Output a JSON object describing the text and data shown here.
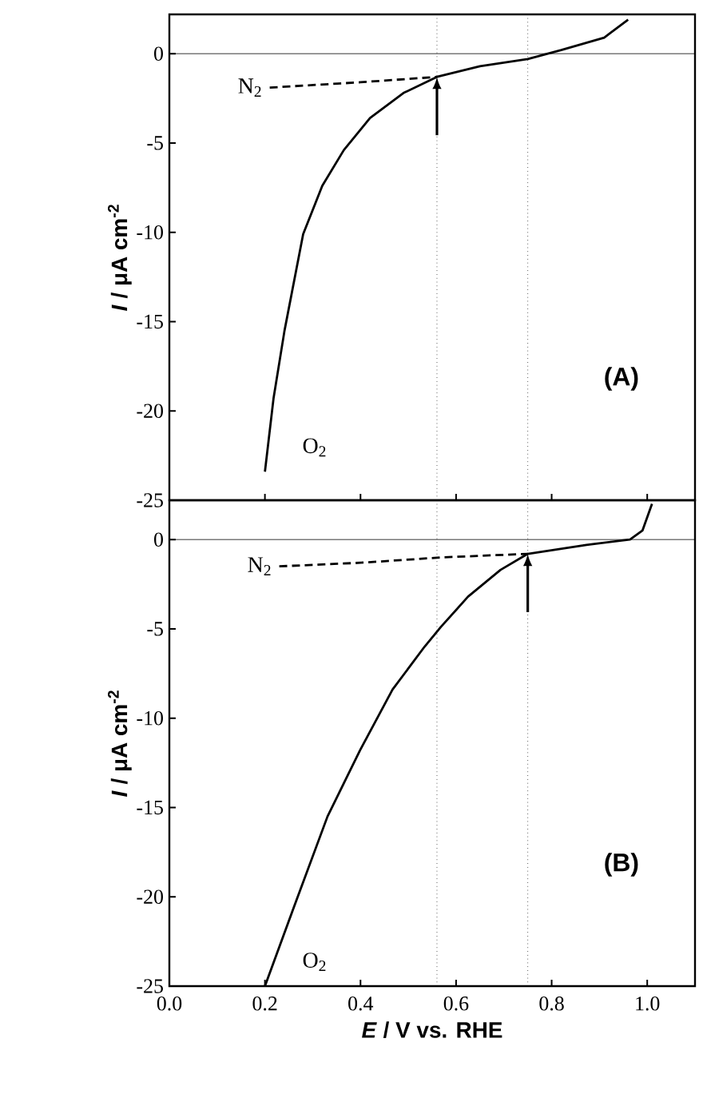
{
  "chart_data": [
    {
      "type": "line",
      "xlim": [
        0,
        1.1
      ],
      "ylim": [
        -25,
        2.2
      ],
      "xticks": [
        {
          "value": 0,
          "label": null
        },
        {
          "value": 0.2,
          "label": null
        },
        {
          "value": 0.4,
          "label": null
        },
        {
          "value": 0.6,
          "label": null
        },
        {
          "value": 0.8,
          "label": null
        },
        {
          "value": 1.0,
          "label": null
        }
      ],
      "yticks": [
        0,
        -5,
        -10,
        -15,
        -20,
        -25
      ],
      "tick_labels": "y",
      "ylabel": "*I* / μA cm$^{-2}$",
      "series": [
        {
          "name": "O$_{2}$",
          "color": "#000000",
          "line_style": "solid",
          "x": [
            0.2,
            0.218,
            0.241,
            0.28,
            0.32,
            0.365,
            0.42,
            0.49,
            0.56,
            0.65,
            0.75,
            0.82,
            0.91,
            0.96
          ],
          "values": [
            -23.4,
            -19.3,
            -15.5,
            -10.1,
            -7.4,
            -5.4,
            -3.6,
            -2.2,
            -1.3,
            -0.7,
            -0.3,
            0.2,
            0.9,
            1.9
          ]
        },
        {
          "name": "N$_{2}$",
          "color": "#000000",
          "line_style": "dashed",
          "x": [
            0.21,
            0.4,
            0.56
          ],
          "values": [
            -1.9,
            -1.6,
            -1.3
          ]
        }
      ],
      "ref_lines": [
        {
          "axis": "y",
          "value": 0,
          "line_style": "solid"
        },
        {
          "axis": "x",
          "value": 0.56,
          "line_style": "dotted"
        },
        {
          "axis": "x",
          "value": 0.75,
          "line_style": "dotted"
        }
      ],
      "annotations": [
        "(A)"
      ]
    },
    {
      "type": "line",
      "xlim": [
        0,
        1.1
      ],
      "ylim": [
        -25,
        2.2
      ],
      "xticks": [
        {
          "value": 0,
          "label": "0.0"
        },
        {
          "value": 0.2,
          "label": "0.2"
        },
        {
          "value": 0.4,
          "label": "0.4"
        },
        {
          "value": 0.6,
          "label": "0.6"
        },
        {
          "value": 0.8,
          "label": "0.8"
        },
        {
          "value": 1.0,
          "label": "1.0"
        }
      ],
      "yticks": [
        0,
        -5,
        -10,
        -15,
        -20,
        -25
      ],
      "xlabel": "*E* / V vs. RHE",
      "ylabel": "*I* / μA cm$^{-2}$",
      "series": [
        {
          "name": "O$_{2}$",
          "color": "#000000",
          "line_style": "solid",
          "x": [
            0.2,
            0.263,
            0.331,
            0.399,
            0.467,
            0.534,
            0.568,
            0.625,
            0.693,
            0.75,
            0.873,
            0.964,
            0.99,
            1.01
          ],
          "values": [
            -25,
            -20.4,
            -15.5,
            -11.8,
            -8.4,
            -6.0,
            -4.9,
            -3.2,
            -1.7,
            -0.8,
            -0.3,
            0,
            0.5,
            2.0
          ]
        },
        {
          "name": "N$_{2}$",
          "color": "#000000",
          "line_style": "dashed",
          "x": [
            0.23,
            0.4,
            0.57,
            0.75
          ],
          "values": [
            -1.5,
            -1.3,
            -1.0,
            -0.8
          ]
        }
      ],
      "ref_lines": [
        {
          "axis": "y",
          "value": 0,
          "line_style": "solid"
        },
        {
          "axis": "x",
          "value": 0.56,
          "line_style": "dotted"
        },
        {
          "axis": "x",
          "value": 0.75,
          "line_style": "dotted"
        }
      ],
      "annotations": [
        "(B)"
      ]
    }
  ]
}
